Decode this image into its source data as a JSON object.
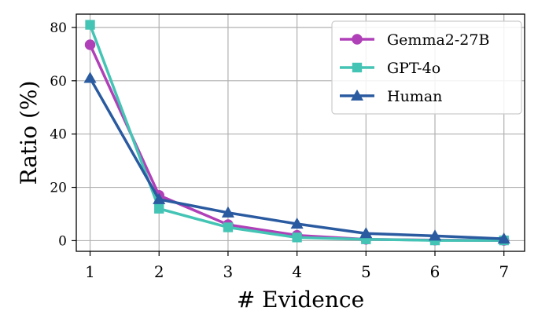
{
  "chart_data": {
    "type": "line",
    "xlabel": "# Evidence",
    "ylabel": "Ratio (%)",
    "x": [
      1,
      2,
      3,
      4,
      5,
      6,
      7
    ],
    "xlim": [
      0.8,
      7.3
    ],
    "ylim": [
      -4,
      85
    ],
    "xticks": [
      1,
      2,
      3,
      4,
      5,
      6,
      7
    ],
    "yticks": [
      0,
      20,
      40,
      60,
      80
    ],
    "grid": true,
    "legend_position": "top-right",
    "series": [
      {
        "name": "Gemma2-27B",
        "color": "#b040b8",
        "marker": "circle",
        "values": [
          73.5,
          17.0,
          6.0,
          2.0,
          0.5,
          0.2,
          0.1
        ]
      },
      {
        "name": "GPT-4o",
        "color": "#44c4b4",
        "marker": "square",
        "values": [
          81.0,
          12.0,
          5.0,
          1.2,
          0.5,
          0.1,
          0.1
        ]
      },
      {
        "name": "Human",
        "color": "#2a5aa0",
        "marker": "triangle",
        "values": [
          61.0,
          15.5,
          10.5,
          6.3,
          2.7,
          1.8,
          0.7
        ]
      }
    ]
  }
}
